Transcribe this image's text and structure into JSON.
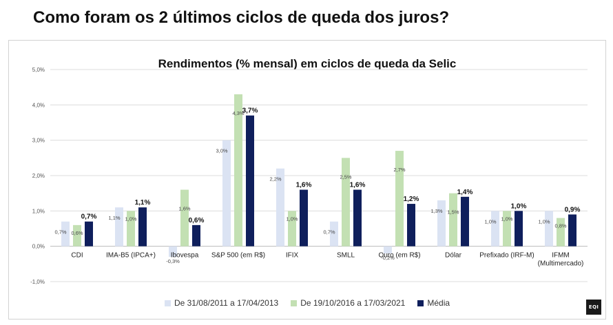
{
  "page": {
    "title": "Como foram os 2 últimos ciclos de queda dos juros?"
  },
  "logo": {
    "text": "EQI",
    "icon": "eqi-logo-icon"
  },
  "chart_data": {
    "type": "bar",
    "title": "Rendimentos (% mensal) em ciclos de queda da Selic",
    "xlabel": "",
    "ylabel": "",
    "ylim": [
      -1.0,
      5.0
    ],
    "yticks": [
      "-1,0%",
      "0,0%",
      "1,0%",
      "2,0%",
      "3,0%",
      "4,0%",
      "5,0%"
    ],
    "grid": true,
    "legend": "bottom",
    "categories": [
      [
        "CDI"
      ],
      [
        "IMA-B5 (IPCA+)"
      ],
      [
        "Ibovespa"
      ],
      [
        "S&P 500 (em R$)"
      ],
      [
        "IFIX"
      ],
      [
        "SMLL"
      ],
      [
        "Ouro (em R$)"
      ],
      [
        "Dólar"
      ],
      [
        "Prefixado (IRF-M)"
      ],
      [
        "IFMM",
        "(Multimercado)"
      ]
    ],
    "series": [
      {
        "name": "De 31/08/2011 a 17/04/2013",
        "color": "#dbe3f3",
        "values": [
          0.7,
          1.1,
          -0.3,
          3.0,
          2.2,
          0.7,
          -0.2,
          1.3,
          1.0,
          1.0
        ],
        "labels": [
          "0,7%",
          "1,1%",
          "-0,3%",
          "3,0%",
          "2,2%",
          "0,7%",
          "-0,2%",
          "1,3%",
          "1,0%",
          "1,0%"
        ]
      },
      {
        "name": "De 19/10/2016 a 17/03/2021",
        "color": "#c3e0b3",
        "values": [
          0.6,
          1.0,
          1.6,
          4.3,
          1.0,
          2.5,
          2.7,
          1.5,
          1.0,
          0.8
        ],
        "labels": [
          "0,6%",
          "1,0%",
          "1,6%",
          "4,3%",
          "1,0%",
          "2,5%",
          "2,7%",
          "1,5%",
          "1,0%",
          "0,8%"
        ]
      },
      {
        "name": "Média",
        "color": "#0f1f5c",
        "values": [
          0.7,
          1.1,
          0.6,
          3.7,
          1.6,
          1.6,
          1.2,
          1.4,
          1.0,
          0.9
        ],
        "labels": [
          "0,7%",
          "1,1%",
          "0,6%",
          "3,7%",
          "1,6%",
          "1,6%",
          "1,2%",
          "1,4%",
          "1,0%",
          "0,9%"
        ]
      }
    ]
  }
}
